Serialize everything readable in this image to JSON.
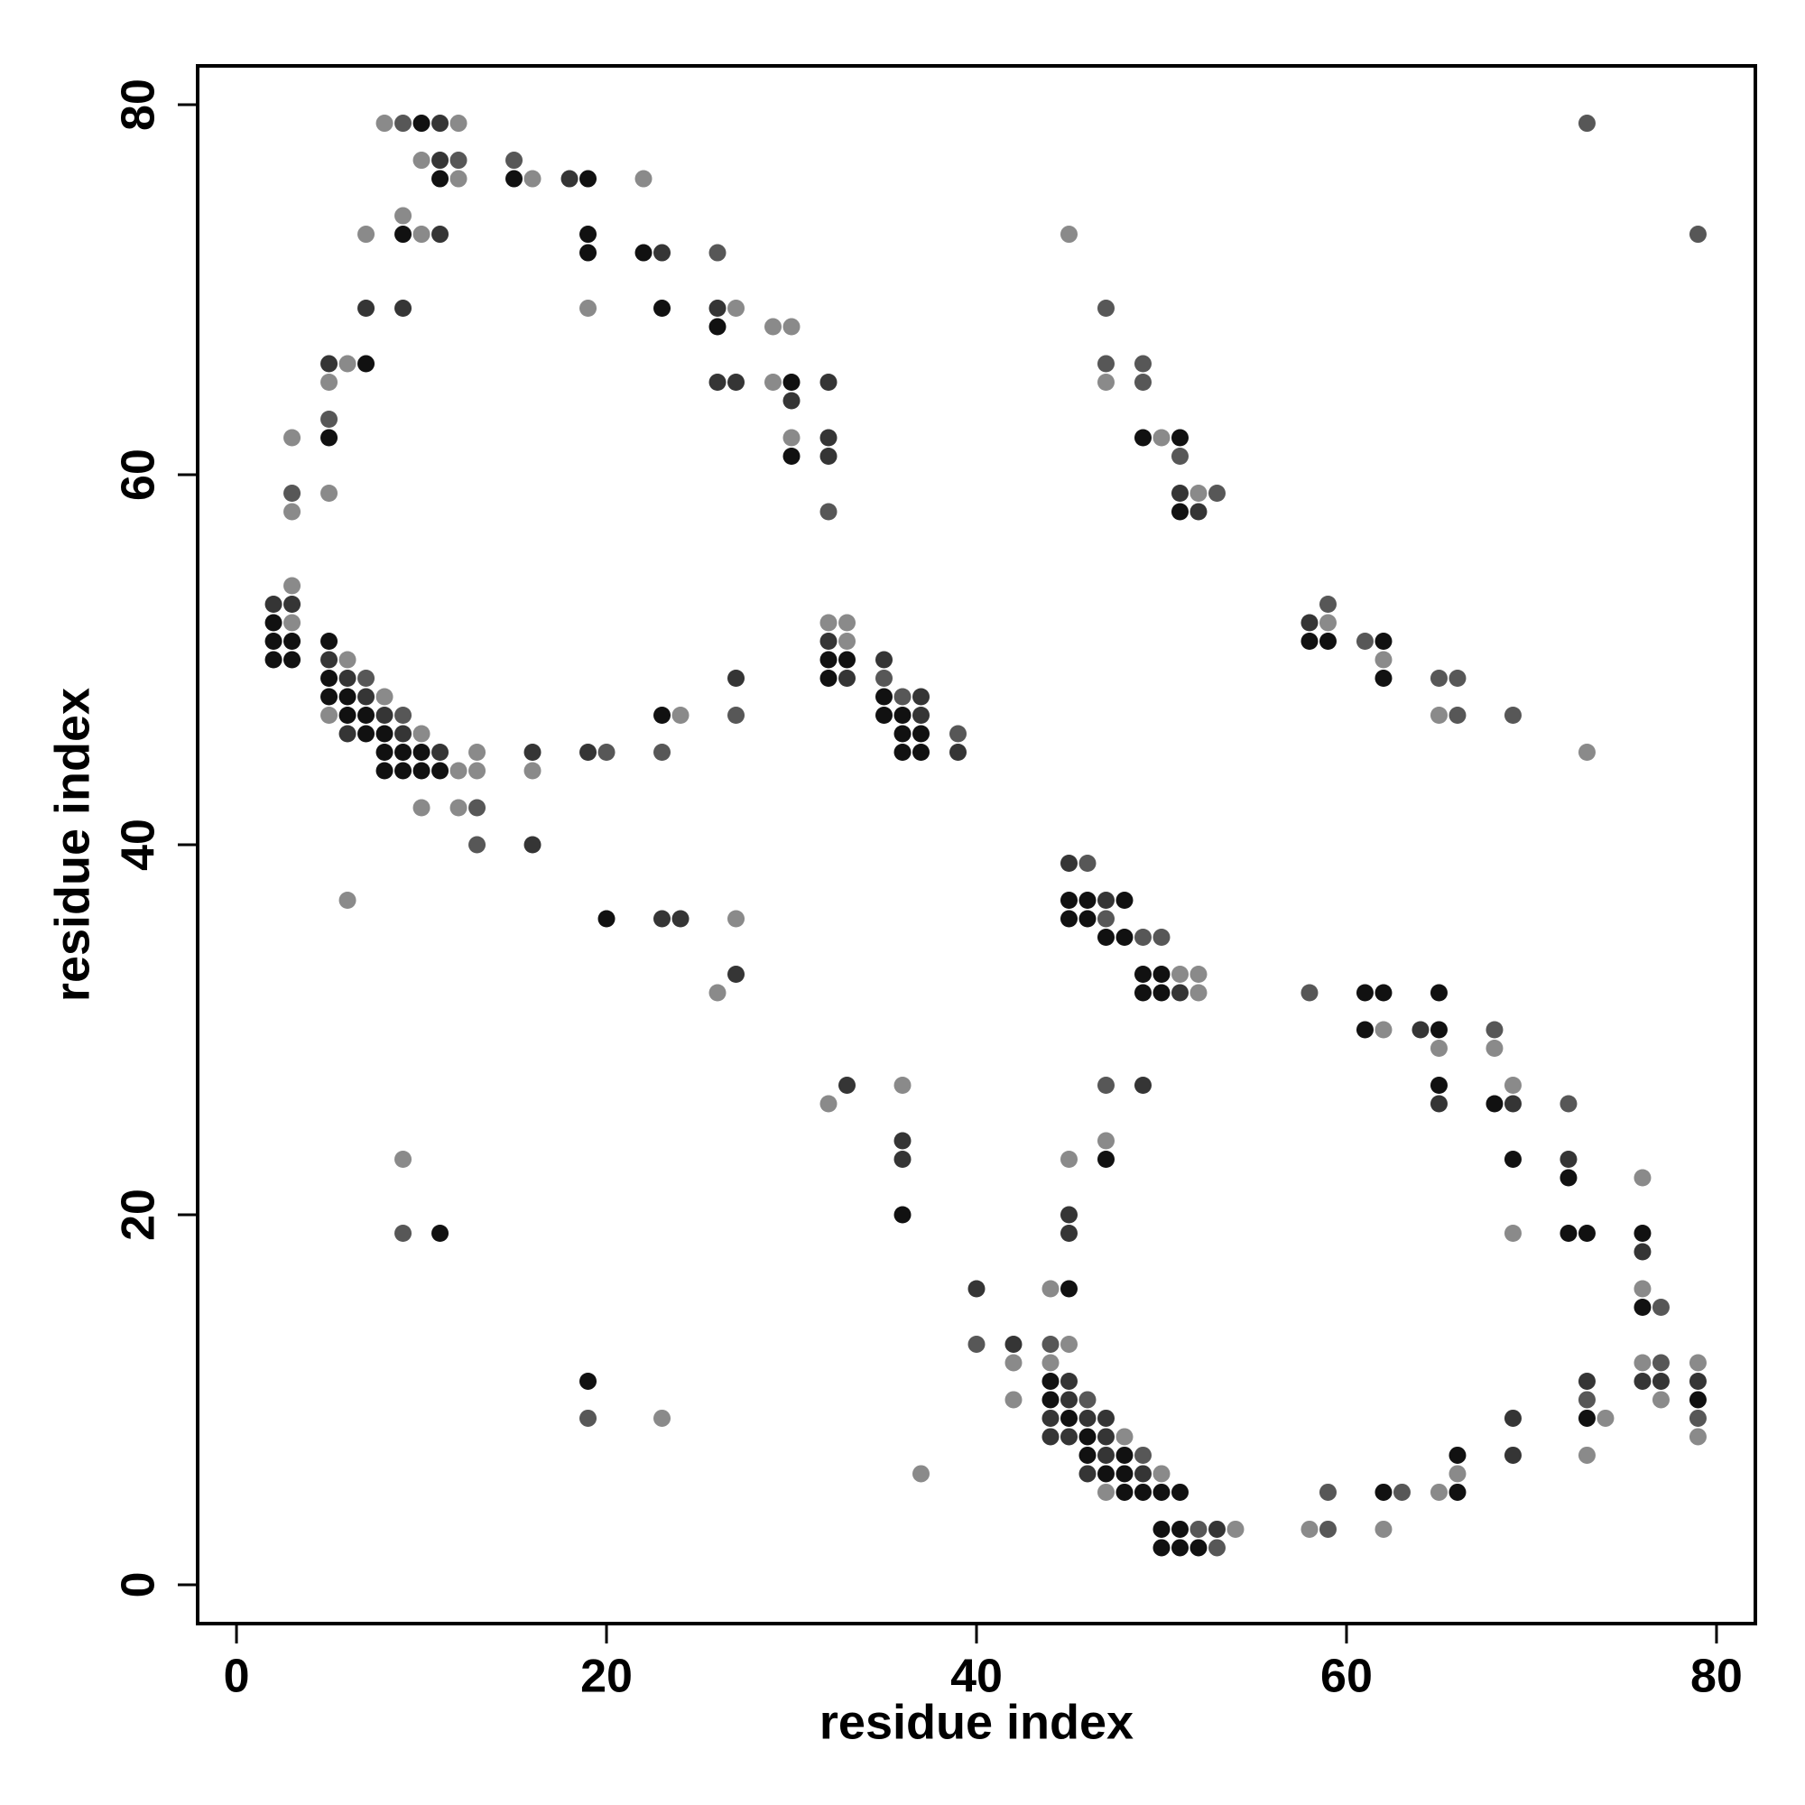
{
  "chart_data": {
    "type": "scatter",
    "xlabel": "residue index",
    "ylabel": "residue index",
    "xlim": [
      -2.1,
      82.1
    ],
    "ylim": [
      -2.1,
      82.1
    ],
    "xticks": [
      0,
      20,
      40,
      60,
      80
    ],
    "yticks": [
      0,
      20,
      40,
      60,
      80
    ],
    "series": [
      {
        "color": "#111111",
        "x": [
          10,
          11,
          15,
          19,
          9,
          19,
          19,
          22,
          23,
          26,
          7,
          30,
          5,
          49,
          51,
          30,
          51,
          2,
          2,
          3,
          5,
          58,
          59,
          62,
          2,
          3,
          32,
          33,
          5,
          32,
          62,
          5,
          6,
          35,
          6,
          7,
          23,
          35,
          36,
          7,
          8,
          36,
          37,
          8,
          9,
          10,
          36,
          37,
          8,
          9,
          10,
          11,
          45,
          46,
          48,
          20,
          45,
          46,
          47,
          48,
          49,
          50,
          49,
          50,
          61,
          62,
          65,
          61,
          65,
          65,
          68,
          47,
          69,
          72,
          36,
          11,
          72,
          73,
          76,
          45,
          76,
          19,
          44,
          44,
          79,
          45,
          73,
          46,
          46,
          48,
          66,
          47,
          48,
          48,
          49,
          50,
          51,
          62,
          66,
          50,
          51,
          50,
          51,
          52
        ],
        "y": [
          79,
          76,
          76,
          76,
          73,
          73,
          72,
          72,
          69,
          68,
          66,
          65,
          62,
          62,
          62,
          61,
          58,
          52,
          51,
          51,
          51,
          51,
          51,
          51,
          50,
          50,
          50,
          50,
          49,
          49,
          49,
          48,
          48,
          48,
          47,
          47,
          47,
          47,
          47,
          46,
          46,
          46,
          46,
          45,
          45,
          45,
          45,
          45,
          44,
          44,
          44,
          44,
          37,
          37,
          37,
          36,
          36,
          36,
          35,
          35,
          33,
          33,
          32,
          32,
          32,
          32,
          32,
          30,
          30,
          27,
          26,
          23,
          23,
          22,
          20,
          19,
          19,
          19,
          19,
          16,
          15,
          11,
          11,
          10,
          10,
          9,
          9,
          8,
          7,
          7,
          7,
          6,
          6,
          5,
          5,
          5,
          5,
          5,
          5,
          3,
          3,
          2,
          2,
          2
        ]
      },
      {
        "color": "#353535",
        "x": [
          11,
          11,
          18,
          11,
          23,
          7,
          9,
          26,
          5,
          26,
          27,
          32,
          30,
          32,
          32,
          51,
          52,
          2,
          3,
          58,
          32,
          5,
          35,
          6,
          27,
          33,
          7,
          37,
          8,
          37,
          6,
          9,
          11,
          16,
          19,
          39,
          16,
          45,
          47,
          23,
          24,
          27,
          51,
          64,
          33,
          49,
          65,
          69,
          36,
          36,
          72,
          45,
          45,
          76,
          40,
          42,
          45,
          73,
          76,
          77,
          79,
          45,
          44,
          46,
          47,
          69,
          44,
          45,
          47,
          47,
          69,
          46,
          49,
          53
        ],
        "y": [
          79,
          77,
          76,
          73,
          72,
          69,
          69,
          69,
          66,
          65,
          65,
          65,
          64,
          62,
          61,
          59,
          58,
          53,
          53,
          52,
          51,
          50,
          50,
          49,
          49,
          49,
          48,
          48,
          47,
          47,
          46,
          46,
          45,
          45,
          45,
          45,
          40,
          39,
          37,
          36,
          36,
          33,
          32,
          30,
          27,
          27,
          26,
          26,
          24,
          23,
          23,
          20,
          19,
          18,
          16,
          13,
          11,
          11,
          11,
          11,
          11,
          10,
          9,
          9,
          9,
          9,
          8,
          8,
          8,
          7,
          7,
          6,
          6,
          3
        ]
      },
      {
        "color": "#575757",
        "x": [
          9,
          73,
          12,
          15,
          79,
          26,
          47,
          47,
          49,
          49,
          5,
          51,
          3,
          53,
          32,
          59,
          61,
          7,
          35,
          65,
          66,
          36,
          9,
          27,
          66,
          69,
          39,
          20,
          23,
          13,
          13,
          46,
          47,
          49,
          50,
          58,
          68,
          47,
          72,
          9,
          77,
          40,
          44,
          77,
          46,
          73,
          19,
          79,
          49,
          59,
          63,
          52,
          59,
          53
        ],
        "y": [
          79,
          79,
          77,
          77,
          73,
          72,
          69,
          66,
          66,
          65,
          63,
          61,
          59,
          59,
          58,
          53,
          51,
          49,
          49,
          49,
          49,
          48,
          47,
          47,
          47,
          47,
          46,
          45,
          45,
          42,
          40,
          39,
          36,
          35,
          35,
          32,
          30,
          27,
          26,
          19,
          15,
          13,
          13,
          12,
          10,
          10,
          9,
          9,
          7,
          5,
          5,
          3,
          3,
          2
        ]
      },
      {
        "color": "#8a8a8a",
        "x": [
          8,
          12,
          10,
          12,
          16,
          22,
          9,
          7,
          10,
          45,
          19,
          27,
          29,
          30,
          6,
          5,
          29,
          47,
          3,
          30,
          50,
          5,
          52,
          3,
          3,
          3,
          32,
          33,
          59,
          33,
          6,
          62,
          8,
          5,
          24,
          65,
          10,
          13,
          73,
          12,
          13,
          16,
          10,
          12,
          6,
          27,
          51,
          52,
          26,
          52,
          62,
          65,
          68,
          36,
          69,
          32,
          47,
          9,
          45,
          76,
          69,
          44,
          76,
          45,
          42,
          44,
          76,
          79,
          42,
          77,
          23,
          74,
          48,
          79,
          73,
          37,
          50,
          66,
          47,
          65,
          54,
          58,
          62
        ],
        "y": [
          79,
          79,
          77,
          76,
          76,
          76,
          74,
          73,
          73,
          73,
          69,
          69,
          68,
          68,
          66,
          65,
          65,
          65,
          62,
          62,
          62,
          59,
          59,
          58,
          54,
          52,
          52,
          52,
          52,
          51,
          50,
          50,
          48,
          47,
          47,
          47,
          46,
          45,
          45,
          44,
          44,
          44,
          42,
          42,
          37,
          36,
          33,
          33,
          32,
          32,
          30,
          29,
          29,
          27,
          27,
          26,
          24,
          23,
          23,
          22,
          19,
          16,
          16,
          13,
          12,
          12,
          12,
          12,
          10,
          10,
          9,
          9,
          8,
          8,
          7,
          6,
          6,
          6,
          5,
          5,
          3,
          3,
          3
        ]
      }
    ]
  }
}
